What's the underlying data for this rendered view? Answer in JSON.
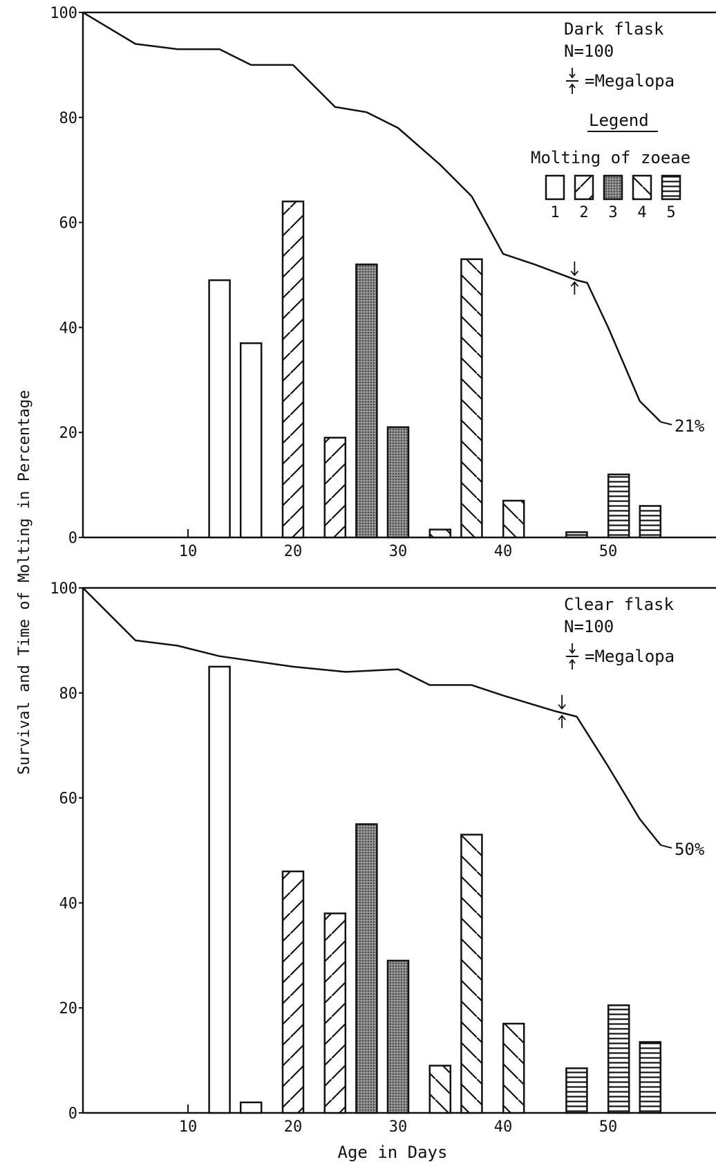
{
  "y_axis_label": "Survival and Time of Molting in Percentage",
  "x_axis_label": "Age in Days",
  "chart_data": [
    {
      "type": "bar",
      "panel": "top",
      "annotations": {
        "title": "Dark flask",
        "n_label": "N=100",
        "megalopa_label": "=Megalopa",
        "end_label": "21%"
      },
      "legend": {
        "heading": "Legend",
        "title": "Molting of zoeae",
        "entries": [
          "1",
          "2",
          "3",
          "4",
          "5"
        ]
      },
      "xlim": [
        0,
        61
      ],
      "ylim": [
        0,
        100
      ],
      "x_ticks": [
        "10",
        "20",
        "30",
        "40",
        "50"
      ],
      "y_ticks": [
        "0",
        "20",
        "40",
        "60",
        "80",
        "100"
      ],
      "bars": [
        {
          "x": 13,
          "value": 49,
          "zoea": 1
        },
        {
          "x": 16,
          "value": 37,
          "zoea": 1
        },
        {
          "x": 20,
          "value": 64,
          "zoea": 2
        },
        {
          "x": 24,
          "value": 19,
          "zoea": 2
        },
        {
          "x": 27,
          "value": 52,
          "zoea": 3
        },
        {
          "x": 30,
          "value": 21,
          "zoea": 3
        },
        {
          "x": 34,
          "value": 1.5,
          "zoea": 4
        },
        {
          "x": 37,
          "value": 53,
          "zoea": 4
        },
        {
          "x": 41,
          "value": 7,
          "zoea": 4
        },
        {
          "x": 47,
          "value": 1,
          "zoea": 5
        },
        {
          "x": 51,
          "value": 12,
          "zoea": 5
        },
        {
          "x": 54,
          "value": 6,
          "zoea": 5
        }
      ],
      "survival_line": {
        "x": [
          0,
          5,
          7,
          9,
          13,
          16,
          20,
          24,
          27,
          30,
          34,
          37,
          40,
          43,
          47,
          48,
          50,
          53,
          55
        ],
        "y": [
          100,
          94,
          93.5,
          93,
          93,
          90,
          90,
          82,
          81,
          78,
          71,
          65,
          54,
          52,
          49,
          48.5,
          40,
          26,
          22
        ]
      },
      "megalopa_x": 46.8
    },
    {
      "type": "bar",
      "panel": "bottom",
      "annotations": {
        "title": "Clear flask",
        "n_label": "N=100",
        "megalopa_label": "=Megalopa",
        "end_label": "50%"
      },
      "xlim": [
        0,
        61
      ],
      "ylim": [
        0,
        100
      ],
      "x_ticks": [
        "10",
        "20",
        "30",
        "40",
        "50"
      ],
      "y_ticks": [
        "0",
        "20",
        "40",
        "60",
        "80",
        "100"
      ],
      "bars": [
        {
          "x": 13,
          "value": 85,
          "zoea": 1
        },
        {
          "x": 16,
          "value": 2,
          "zoea": 1
        },
        {
          "x": 20,
          "value": 46,
          "zoea": 2
        },
        {
          "x": 24,
          "value": 38,
          "zoea": 2
        },
        {
          "x": 27,
          "value": 55,
          "zoea": 3
        },
        {
          "x": 30,
          "value": 29,
          "zoea": 3
        },
        {
          "x": 34,
          "value": 9,
          "zoea": 4
        },
        {
          "x": 37,
          "value": 53,
          "zoea": 4
        },
        {
          "x": 41,
          "value": 17,
          "zoea": 4
        },
        {
          "x": 47,
          "value": 8.5,
          "zoea": 5
        },
        {
          "x": 51,
          "value": 20.5,
          "zoea": 5
        },
        {
          "x": 54,
          "value": 13.5,
          "zoea": 5
        }
      ],
      "survival_line": {
        "x": [
          0,
          5,
          9,
          13,
          20,
          25,
          30,
          33,
          37,
          40,
          45,
          47,
          50,
          53,
          55
        ],
        "y": [
          100,
          90,
          89,
          87,
          85,
          84,
          84.5,
          81.5,
          81.5,
          79.5,
          76.5,
          75.5,
          66,
          56,
          51
        ]
      },
      "megalopa_x": 45.6
    }
  ]
}
